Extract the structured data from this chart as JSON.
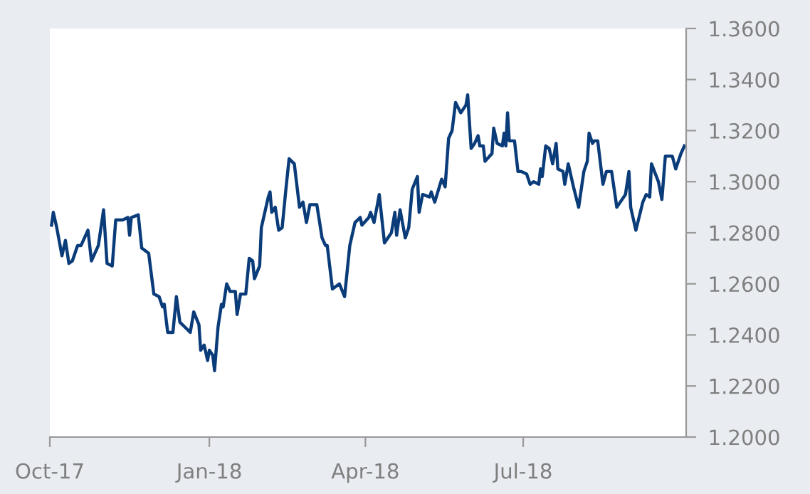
{
  "chart_data": {
    "type": "line",
    "x": [
      "2017-10-02",
      "2017-10-03",
      "2017-10-05",
      "2017-10-08",
      "2017-10-10",
      "2017-10-12",
      "2017-10-14",
      "2017-10-17",
      "2017-10-19",
      "2017-10-23",
      "2017-10-25",
      "2017-10-29",
      "2017-11-01",
      "2017-11-03",
      "2017-11-06",
      "2017-11-08",
      "2017-11-12",
      "2017-11-15",
      "2017-11-16",
      "2017-11-17",
      "2017-11-21",
      "2017-11-23",
      "2017-11-27",
      "2017-11-30",
      "2017-12-03",
      "2017-12-05",
      "2017-12-06",
      "2017-12-08",
      "2017-12-11",
      "2017-12-13",
      "2017-12-15",
      "2017-12-18",
      "2017-12-21",
      "2017-12-23",
      "2017-12-26",
      "2017-12-27",
      "2017-12-29",
      "2017-12-31",
      "2018-01-01",
      "2018-01-03",
      "2018-01-04",
      "2018-01-06",
      "2018-01-08",
      "2018-01-09",
      "2018-01-11",
      "2018-01-13",
      "2018-01-16",
      "2018-01-17",
      "2018-01-19",
      "2018-01-22",
      "2018-01-24",
      "2018-01-26",
      "2018-01-27",
      "2018-01-30",
      "2018-01-31",
      "2018-02-04",
      "2018-02-05",
      "2018-02-06",
      "2018-02-08",
      "2018-02-10",
      "2018-02-12",
      "2018-02-14",
      "2018-02-16",
      "2018-02-19",
      "2018-02-22",
      "2018-02-24",
      "2018-02-26",
      "2018-02-28",
      "2018-03-04",
      "2018-03-07",
      "2018-03-09",
      "2018-03-10",
      "2018-03-13",
      "2018-03-17",
      "2018-03-20",
      "2018-03-23",
      "2018-03-26",
      "2018-03-29",
      "2018-03-30",
      "2018-04-03",
      "2018-04-04",
      "2018-04-06",
      "2018-04-09",
      "2018-04-12",
      "2018-04-16",
      "2018-04-18",
      "2018-04-19",
      "2018-04-21",
      "2018-04-24",
      "2018-04-26",
      "2018-04-28",
      "2018-05-01",
      "2018-05-02",
      "2018-05-04",
      "2018-05-08",
      "2018-05-09",
      "2018-05-11",
      "2018-05-15",
      "2018-05-17",
      "2018-05-19",
      "2018-05-21",
      "2018-05-23",
      "2018-05-26",
      "2018-05-29",
      "2018-05-30",
      "2018-06-01",
      "2018-06-03",
      "2018-06-05",
      "2018-06-06",
      "2018-06-08",
      "2018-06-09",
      "2018-06-13",
      "2018-06-14",
      "2018-06-16",
      "2018-06-19",
      "2018-06-20",
      "2018-06-21",
      "2018-06-22",
      "2018-06-23",
      "2018-06-26",
      "2018-06-28",
      "2018-06-30",
      "2018-07-03",
      "2018-07-05",
      "2018-07-07",
      "2018-07-10",
      "2018-07-11",
      "2018-07-12",
      "2018-07-14",
      "2018-07-16",
      "2018-07-18",
      "2018-07-20",
      "2018-07-21",
      "2018-07-24",
      "2018-07-25",
      "2018-07-27",
      "2018-07-30",
      "2018-08-02",
      "2018-08-05",
      "2018-08-07",
      "2018-08-08",
      "2018-08-10",
      "2018-08-11",
      "2018-08-13",
      "2018-08-16",
      "2018-08-18",
      "2018-08-21",
      "2018-08-24",
      "2018-08-29",
      "2018-08-31",
      "2018-09-01",
      "2018-09-04",
      "2018-09-08",
      "2018-09-10",
      "2018-09-12",
      "2018-09-13",
      "2018-09-17",
      "2018-09-19",
      "2018-09-21",
      "2018-09-25",
      "2018-09-27",
      "2018-09-30",
      "2018-10-02"
    ],
    "series": [
      {
        "color": "#0b3c7a",
        "values": [
          1.283,
          1.288,
          1.282,
          1.271,
          1.277,
          1.268,
          1.269,
          1.275,
          1.275,
          1.281,
          1.269,
          1.275,
          1.289,
          1.268,
          1.267,
          1.285,
          1.285,
          1.286,
          1.279,
          1.286,
          1.287,
          1.274,
          1.272,
          1.256,
          1.255,
          1.251,
          1.252,
          1.241,
          1.241,
          1.255,
          1.245,
          1.243,
          1.241,
          1.249,
          1.244,
          1.234,
          1.236,
          1.23,
          1.234,
          1.232,
          1.226,
          1.243,
          1.252,
          1.251,
          1.26,
          1.257,
          1.257,
          1.248,
          1.256,
          1.256,
          1.27,
          1.269,
          1.262,
          1.267,
          1.282,
          1.294,
          1.296,
          1.288,
          1.29,
          1.281,
          1.282,
          1.296,
          1.309,
          1.307,
          1.29,
          1.292,
          1.284,
          1.291,
          1.291,
          1.278,
          1.275,
          1.275,
          1.258,
          1.26,
          1.255,
          1.275,
          1.284,
          1.286,
          1.283,
          1.286,
          1.288,
          1.284,
          1.295,
          1.276,
          1.28,
          1.288,
          1.279,
          1.289,
          1.278,
          1.282,
          1.297,
          1.302,
          1.288,
          1.295,
          1.294,
          1.296,
          1.292,
          1.301,
          1.298,
          1.317,
          1.32,
          1.331,
          1.327,
          1.33,
          1.334,
          1.313,
          1.315,
          1.318,
          1.314,
          1.314,
          1.308,
          1.311,
          1.321,
          1.315,
          1.314,
          1.319,
          1.314,
          1.327,
          1.316,
          1.316,
          1.304,
          1.304,
          1.303,
          1.299,
          1.3,
          1.299,
          1.305,
          1.302,
          1.314,
          1.313,
          1.307,
          1.315,
          1.305,
          1.304,
          1.299,
          1.307,
          1.298,
          1.29,
          1.304,
          1.308,
          1.319,
          1.315,
          1.316,
          1.316,
          1.299,
          1.304,
          1.304,
          1.29,
          1.295,
          1.304,
          1.29,
          1.281,
          1.292,
          1.295,
          1.294,
          1.307,
          1.3,
          1.293,
          1.31,
          1.31,
          1.305,
          1.311,
          1.314
        ]
      }
    ],
    "xlim": [
      "2017-10-01",
      "2018-10-03"
    ],
    "xticks": [
      {
        "value": "2017-10-01",
        "label": "Oct-17"
      },
      {
        "value": "2018-01-01",
        "label": "Jan-18"
      },
      {
        "value": "2018-04-01",
        "label": "Apr-18"
      },
      {
        "value": "2018-07-01",
        "label": "Jul-18"
      }
    ],
    "ylim": [
      1.2,
      1.36
    ],
    "yticks": [
      {
        "value": 1.2,
        "label": "1.2000"
      },
      {
        "value": 1.22,
        "label": "1.2200"
      },
      {
        "value": 1.24,
        "label": "1.2400"
      },
      {
        "value": 1.26,
        "label": "1.2600"
      },
      {
        "value": 1.28,
        "label": "1.2800"
      },
      {
        "value": 1.3,
        "label": "1.3000"
      },
      {
        "value": 1.32,
        "label": "1.3200"
      },
      {
        "value": 1.34,
        "label": "1.3400"
      },
      {
        "value": 1.36,
        "label": "1.3600"
      }
    ],
    "grid": false,
    "legend": false
  }
}
